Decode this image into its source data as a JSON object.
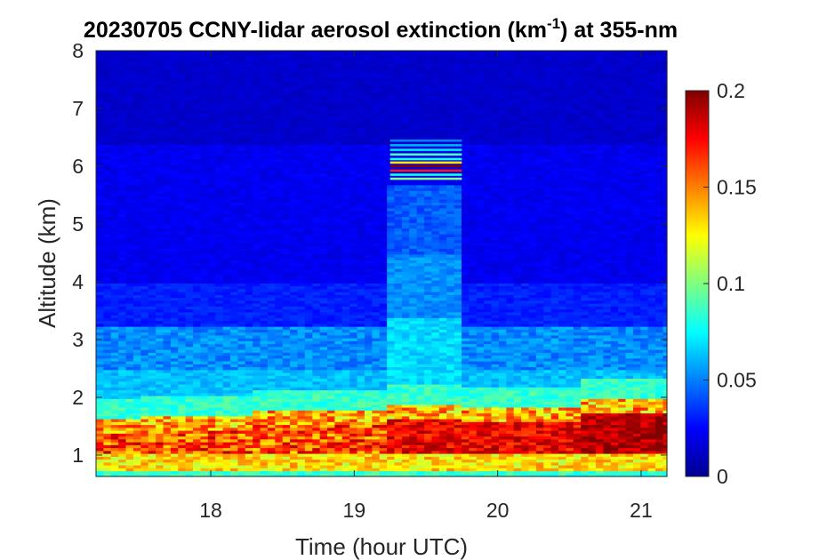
{
  "chart_data": {
    "type": "heatmap",
    "title_prefix": "20230705 CCNY-lidar aerosol extinction (km",
    "title_sup": "-1",
    "title_suffix": ") at 355-nm",
    "xlabel": "Time (hour UTC)",
    "ylabel": "Altitude (km)",
    "xlim": [
      17.2,
      21.18
    ],
    "ylim": [
      0.63,
      8
    ],
    "xticks": [
      18,
      19,
      20,
      21
    ],
    "yticks": [
      1,
      2,
      3,
      4,
      5,
      6,
      7,
      8
    ],
    "colorbar": {
      "min": 0,
      "max": 0.2,
      "ticks": [
        "0",
        "0.05",
        "0.1",
        "0.15",
        "0.2"
      ],
      "colormap": "jet"
    },
    "profile_altitudes_km": [
      0.63,
      0.8,
      1.0,
      1.2,
      1.4,
      1.6,
      1.8,
      2.0,
      2.2,
      2.5,
      2.8,
      3.1,
      3.4,
      4.0,
      5.0,
      6.0,
      7.0,
      8.0
    ],
    "layer_descriptions": [
      "Near-surface aerosol layer 0.63-2 km with extinction 0.12-0.2 km-1",
      "Elevated residual layer near 2.5-3.2 km with extinction ~0.04-0.06 km-1",
      "Cloud-contaminated bins near 5.8-6.4 km between 19.25 and 19.75 UTC"
    ],
    "time_segments": [
      {
        "start": 17.2,
        "end": 19.25,
        "boundary_layer_top_km": 1.75,
        "peak_extinction": 0.19
      },
      {
        "start": 19.25,
        "end": 19.75,
        "boundary_layer_top_km": 1.9,
        "peak_extinction": 0.2,
        "cloud_base_km": 5.75,
        "cloud_top_km": 6.45
      },
      {
        "start": 19.75,
        "end": 20.6,
        "boundary_layer_top_km": 1.8,
        "peak_extinction": 0.19
      },
      {
        "start": 20.6,
        "end": 21.18,
        "boundary_layer_top_km": 1.95,
        "peak_extinction": 0.2
      }
    ]
  }
}
